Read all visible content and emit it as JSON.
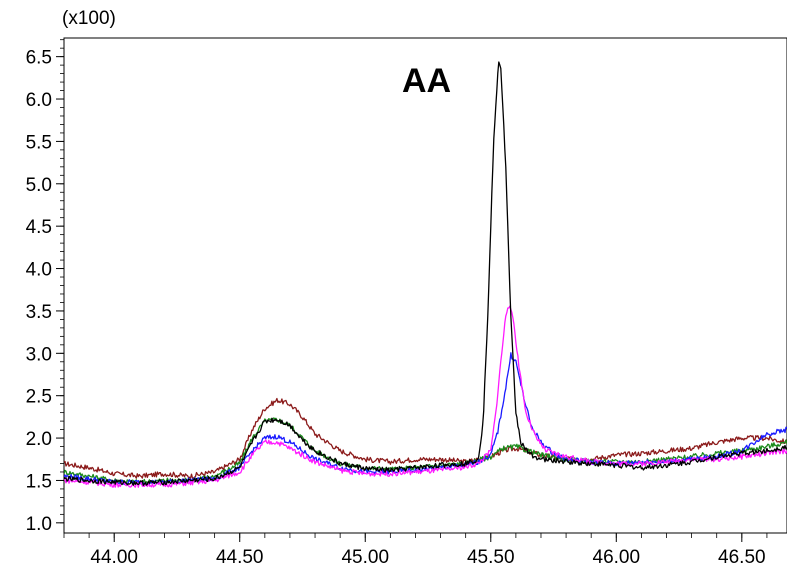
{
  "chart_data": {
    "type": "line",
    "title": "",
    "xlabel": "",
    "ylabel": "",
    "y_multiplier_label": "(x100)",
    "xlim": [
      43.8,
      46.68
    ],
    "ylim": [
      0.88,
      6.72
    ],
    "x_ticks": [
      44.0,
      44.5,
      45.0,
      45.5,
      46.0,
      46.5
    ],
    "x_tick_labels": [
      "44.00",
      "44.50",
      "45.00",
      "45.50",
      "46.00",
      "46.50"
    ],
    "y_ticks": [
      1.0,
      1.5,
      2.0,
      2.5,
      3.0,
      3.5,
      4.0,
      4.5,
      5.0,
      5.5,
      6.0,
      6.5
    ],
    "y_tick_labels": [
      "1.0",
      "1.5",
      "2.0",
      "2.5",
      "3.0",
      "3.5",
      "4.0",
      "4.5",
      "5.0",
      "5.5",
      "6.0",
      "6.5"
    ],
    "grid": false,
    "legend": "none",
    "annotations": [
      {
        "text": "AA",
        "x": 45.2,
        "y": 6.1
      }
    ],
    "series": [
      {
        "color": "#8b1a1a",
        "x": [
          43.8,
          43.9,
          44.0,
          44.1,
          44.2,
          44.3,
          44.4,
          44.5,
          44.55,
          44.6,
          44.65,
          44.7,
          44.75,
          44.8,
          44.9,
          45.0,
          45.1,
          45.2,
          45.3,
          45.4,
          45.5,
          45.55,
          45.6,
          45.7,
          45.8,
          45.9,
          46.0,
          46.1,
          46.2,
          46.3,
          46.4,
          46.5,
          46.6,
          46.68
        ],
        "y": [
          1.7,
          1.65,
          1.58,
          1.55,
          1.58,
          1.55,
          1.6,
          1.75,
          2.1,
          2.35,
          2.45,
          2.4,
          2.25,
          2.05,
          1.85,
          1.75,
          1.72,
          1.75,
          1.75,
          1.72,
          1.78,
          1.85,
          1.88,
          1.8,
          1.75,
          1.75,
          1.8,
          1.82,
          1.85,
          1.88,
          1.95,
          2.0,
          2.0,
          1.95
        ]
      },
      {
        "color": "#1a8a1a",
        "x": [
          43.8,
          43.9,
          44.0,
          44.1,
          44.2,
          44.3,
          44.4,
          44.5,
          44.55,
          44.6,
          44.65,
          44.7,
          44.75,
          44.8,
          44.9,
          45.0,
          45.1,
          45.2,
          45.3,
          45.4,
          45.5,
          45.55,
          45.6,
          45.7,
          45.8,
          45.9,
          46.0,
          46.1,
          46.2,
          46.3,
          46.4,
          46.5,
          46.6,
          46.68
        ],
        "y": [
          1.6,
          1.55,
          1.5,
          1.48,
          1.5,
          1.5,
          1.55,
          1.7,
          2.0,
          2.2,
          2.22,
          2.15,
          2.0,
          1.85,
          1.7,
          1.65,
          1.63,
          1.65,
          1.68,
          1.7,
          1.78,
          1.88,
          1.9,
          1.8,
          1.75,
          1.72,
          1.72,
          1.72,
          1.75,
          1.78,
          1.82,
          1.85,
          1.9,
          1.95
        ]
      },
      {
        "color": "#1a1aff",
        "x": [
          43.8,
          43.9,
          44.0,
          44.1,
          44.2,
          44.3,
          44.4,
          44.5,
          44.55,
          44.6,
          44.65,
          44.7,
          44.75,
          44.8,
          44.9,
          45.0,
          45.1,
          45.2,
          45.3,
          45.4,
          45.45,
          45.5,
          45.53,
          45.56,
          45.58,
          45.6,
          45.63,
          45.66,
          45.7,
          45.75,
          45.8,
          45.9,
          46.0,
          46.1,
          46.2,
          46.3,
          46.4,
          46.5,
          46.55,
          46.6,
          46.68
        ],
        "y": [
          1.55,
          1.52,
          1.48,
          1.48,
          1.48,
          1.5,
          1.52,
          1.65,
          1.85,
          2.0,
          2.02,
          1.95,
          1.85,
          1.75,
          1.65,
          1.6,
          1.6,
          1.62,
          1.65,
          1.68,
          1.72,
          1.8,
          2.1,
          2.6,
          2.98,
          2.9,
          2.5,
          2.15,
          1.95,
          1.82,
          1.75,
          1.72,
          1.7,
          1.72,
          1.72,
          1.75,
          1.78,
          1.85,
          1.95,
          2.05,
          2.1
        ]
      },
      {
        "color": "#ff1aff",
        "x": [
          43.8,
          43.9,
          44.0,
          44.1,
          44.2,
          44.3,
          44.4,
          44.5,
          44.55,
          44.6,
          44.65,
          44.7,
          44.75,
          44.8,
          44.9,
          45.0,
          45.1,
          45.2,
          45.3,
          45.4,
          45.45,
          45.5,
          45.52,
          45.54,
          45.56,
          45.57,
          45.59,
          45.61,
          45.64,
          45.68,
          45.72,
          45.8,
          45.9,
          46.0,
          46.1,
          46.2,
          46.3,
          46.4,
          46.5,
          46.6,
          46.68
        ],
        "y": [
          1.5,
          1.48,
          1.45,
          1.45,
          1.45,
          1.47,
          1.5,
          1.6,
          1.8,
          1.95,
          1.95,
          1.88,
          1.8,
          1.72,
          1.62,
          1.58,
          1.58,
          1.6,
          1.62,
          1.66,
          1.7,
          1.85,
          2.3,
          2.9,
          3.45,
          3.58,
          3.4,
          2.9,
          2.3,
          2.0,
          1.85,
          1.78,
          1.72,
          1.7,
          1.7,
          1.72,
          1.75,
          1.75,
          1.78,
          1.82,
          1.85
        ]
      },
      {
        "color": "#000000",
        "x": [
          43.8,
          43.9,
          44.0,
          44.1,
          44.2,
          44.3,
          44.4,
          44.5,
          44.55,
          44.6,
          44.65,
          44.7,
          44.75,
          44.8,
          44.9,
          45.0,
          45.1,
          45.2,
          45.3,
          45.4,
          45.45,
          45.47,
          45.49,
          45.51,
          45.53,
          45.54,
          45.56,
          45.58,
          45.6,
          45.62,
          45.65,
          45.7,
          45.8,
          45.9,
          46.0,
          46.1,
          46.2,
          46.3,
          46.4,
          46.5,
          46.6,
          46.68
        ],
        "y": [
          1.52,
          1.5,
          1.48,
          1.47,
          1.48,
          1.5,
          1.52,
          1.65,
          1.95,
          2.2,
          2.22,
          2.15,
          1.98,
          1.85,
          1.7,
          1.64,
          1.62,
          1.65,
          1.68,
          1.7,
          1.75,
          2.2,
          3.6,
          5.4,
          6.42,
          6.38,
          5.2,
          3.4,
          2.3,
          1.95,
          1.82,
          1.75,
          1.72,
          1.7,
          1.68,
          1.65,
          1.68,
          1.72,
          1.78,
          1.82,
          1.85,
          1.9
        ]
      }
    ]
  }
}
